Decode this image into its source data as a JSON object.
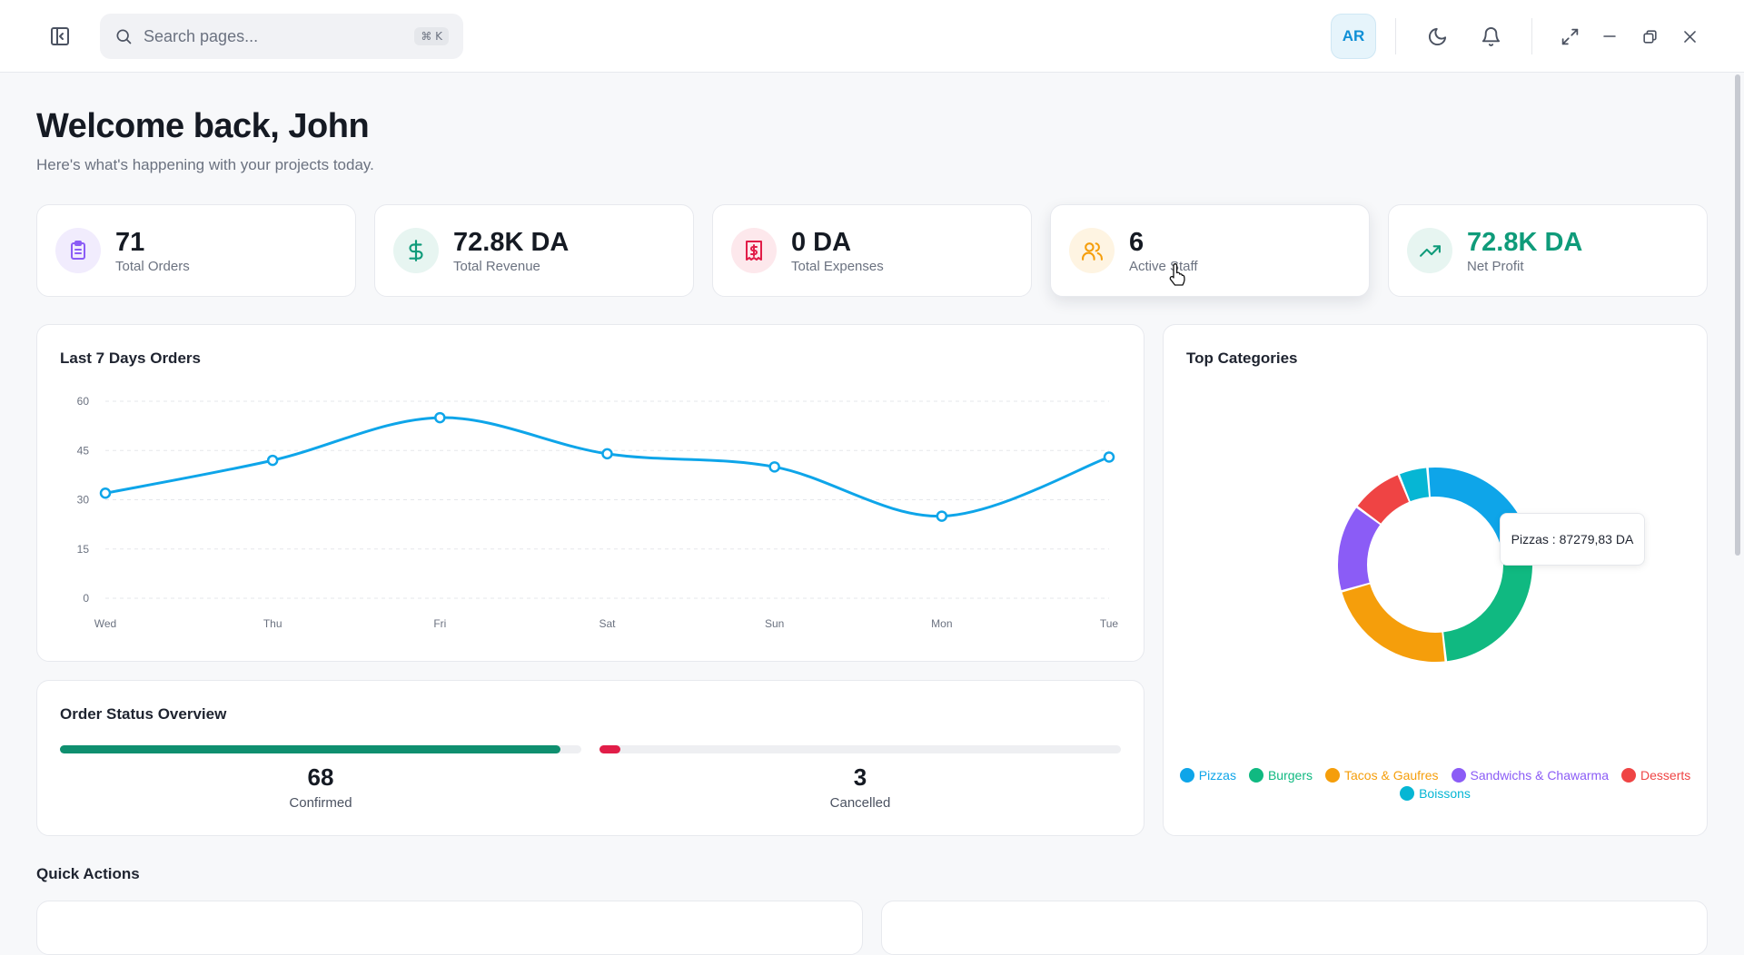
{
  "header": {
    "search_placeholder": "Search pages...",
    "search_shortcut": "⌘ K",
    "avatar_initials": "AR"
  },
  "welcome": {
    "title": "Welcome back, John",
    "subtitle": "Here's what's happening with your projects today."
  },
  "stats": [
    {
      "value": "71",
      "label": "Total Orders",
      "icon": "clipboard-icon",
      "color": "#8b5cf6",
      "bg": "#f1ecfd"
    },
    {
      "value": "72.8K DA",
      "label": "Total Revenue",
      "icon": "dollar-icon",
      "color": "#0f9b7a",
      "bg": "#e7f5f1"
    },
    {
      "value": "0 DA",
      "label": "Total Expenses",
      "icon": "receipt-icon",
      "color": "#e11d48",
      "bg": "#fde8ec"
    },
    {
      "value": "6",
      "label": "Active Staff",
      "icon": "users-icon",
      "color": "#f59e0b",
      "bg": "#fef4e2"
    },
    {
      "value": "72.8K DA",
      "label": "Net Profit",
      "icon": "trending-up-icon",
      "color": "#0f9b7a",
      "bg": "#e7f5f1"
    }
  ],
  "orders_chart": {
    "title": "Last 7 Days Orders",
    "chart_data": {
      "type": "line",
      "categories": [
        "Wed",
        "Thu",
        "Fri",
        "Sat",
        "Sun",
        "Mon",
        "Tue"
      ],
      "values": [
        32,
        42,
        55,
        44,
        40,
        25,
        43
      ],
      "yticks": [
        0,
        15,
        30,
        45,
        60
      ],
      "ylim": [
        0,
        60
      ],
      "grid": true,
      "color": "#0ea5e9"
    }
  },
  "order_status": {
    "title": "Order Status Overview",
    "confirmed": {
      "value": "68",
      "label": "Confirmed",
      "fraction": 0.96,
      "color": "#0f8f6f"
    },
    "cancelled": {
      "value": "3",
      "label": "Cancelled",
      "fraction": 0.04,
      "color": "#e11d48"
    }
  },
  "categories_chart": {
    "title": "Top Categories",
    "tooltip": "Pizzas : 87279,83 DA",
    "chart_data": {
      "type": "pie",
      "donut": true,
      "labels": [
        "Pizzas",
        "Burgers",
        "Tacos & Gaufres",
        "Sandwichs & Chawarma",
        "Desserts",
        "Boissons"
      ],
      "values": [
        24,
        27,
        23,
        15,
        9,
        5
      ],
      "colors": [
        "#0ea5e9",
        "#10b981",
        "#f59e0b",
        "#8b5cf6",
        "#ef4444",
        "#06b6d4"
      ],
      "legend": "bottom"
    }
  },
  "quick_actions": {
    "title": "Quick Actions"
  }
}
